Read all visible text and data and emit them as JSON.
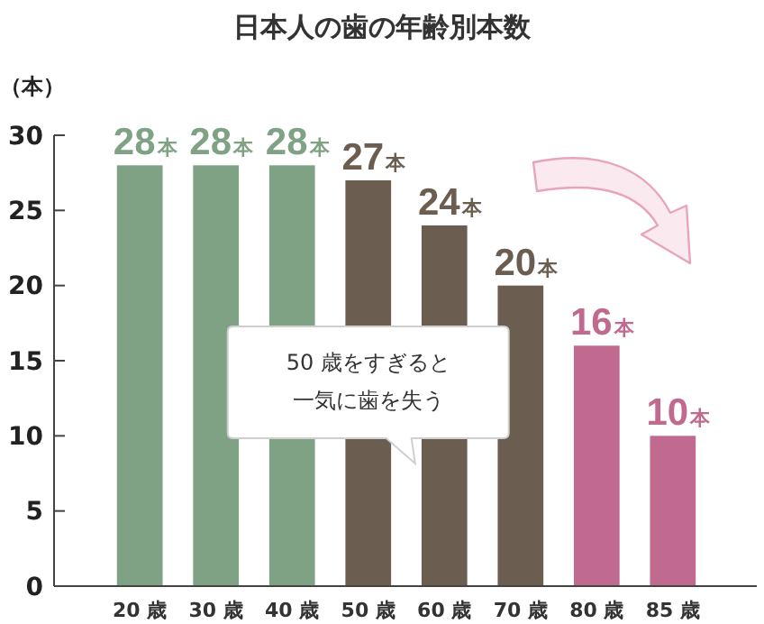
{
  "chart_data": {
    "type": "bar",
    "title": "日本人の歯の年齢別本数",
    "ylabel": "（本）",
    "categories": [
      "20 歳",
      "30 歳",
      "40 歳",
      "50 歳",
      "60 歳",
      "70 歳",
      "80 歳",
      "85 歳"
    ],
    "values": [
      28,
      28,
      28,
      27,
      24,
      20,
      16,
      10
    ],
    "colors": [
      "#7ea283",
      "#7ea283",
      "#7ea283",
      "#6b5e51",
      "#6b5e51",
      "#6b5e51",
      "#c06a8f",
      "#c06a8f"
    ],
    "value_labels": [
      "28本",
      "28本",
      "28本",
      "27本",
      "24本",
      "20本",
      "16本",
      "10本"
    ],
    "ylim": [
      0,
      30
    ],
    "yticks": [
      0,
      5,
      10,
      15,
      20,
      25,
      30
    ],
    "grid": false,
    "annotations": [
      "50 歳をすぎると一気に歯を失う"
    ]
  }
}
